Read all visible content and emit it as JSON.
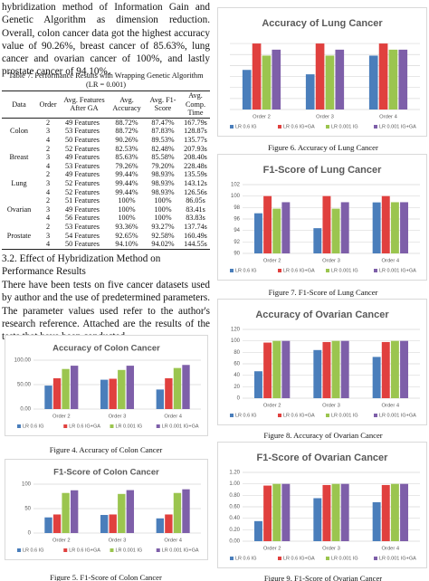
{
  "paragraph1": "hybridization method of Information Gain and Genetic Algorithm as dimension reduction. Overall, colon cancer data got the highest accuracy value of 90.26%, breast cancer of 85.63%, lung cancer and ovarian cancer of 100%, and lastly prostate cancer of 94.10%.",
  "table": {
    "caption": "Table 7. Performance Results with Wrapping Genetic Algorithm (LR = 0.001)",
    "headers": [
      "Data",
      "Order",
      "Avg. Features After GA",
      "Avg. Accuracy",
      "Avg. F1-Score",
      "Avg. Comp. Time"
    ],
    "groups": [
      {
        "data": "Colon",
        "rows": [
          [
            "2",
            "49 Features",
            "88.72%",
            "87.47%",
            "167.79s"
          ],
          [
            "3",
            "53 Features",
            "88.72%",
            "87.83%",
            "128.87s"
          ],
          [
            "4",
            "50 Features",
            "90.26%",
            "89.53%",
            "135.77s"
          ]
        ]
      },
      {
        "data": "Breast",
        "rows": [
          [
            "2",
            "52 Features",
            "82.53%",
            "82.48%",
            "207.93s"
          ],
          [
            "3",
            "49 Features",
            "85.63%",
            "85.58%",
            "208.40s"
          ],
          [
            "4",
            "53 Features",
            "79.26%",
            "79.20%",
            "228.48s"
          ]
        ]
      },
      {
        "data": "Lung",
        "rows": [
          [
            "2",
            "49 Features",
            "99.44%",
            "98.93%",
            "135.59s"
          ],
          [
            "3",
            "52 Features",
            "99.44%",
            "98.93%",
            "143.12s"
          ],
          [
            "4",
            "52 Features",
            "99.44%",
            "98.93%",
            "126.56s"
          ]
        ]
      },
      {
        "data": "Ovarian",
        "rows": [
          [
            "2",
            "51 Features",
            "100%",
            "100%",
            "86.05s"
          ],
          [
            "3",
            "49 Features",
            "100%",
            "100%",
            "83.41s"
          ],
          [
            "4",
            "56 Features",
            "100%",
            "100%",
            "83.83s"
          ]
        ]
      },
      {
        "data": "Prostate",
        "rows": [
          [
            "2",
            "53 Features",
            "93.36%",
            "93.27%",
            "137.74s"
          ],
          [
            "3",
            "54 Features",
            "92.65%",
            "92.58%",
            "160.49s"
          ],
          [
            "4",
            "50 Features",
            "94.10%",
            "94.02%",
            "144.55s"
          ]
        ]
      }
    ]
  },
  "section_heading": "3.2. Effect of Hybridization Method on Performance Results",
  "paragraph2": "There have been tests on five cancer datasets used by author and the use of predetermined parameters. The parameter values used refer to the author's research reference. Attached are the results of the tests that have been conducted.",
  "chart_data": [
    {
      "type": "bar",
      "title": "Accuracy of Colon Cancer",
      "caption": "Figure 4. Accuracy of Colon Cancer",
      "categories": [
        "Order 2",
        "Order 3",
        "Order 4"
      ],
      "series": [
        {
          "name": "LR 0.6 IG",
          "color": "#4a7ebb",
          "values": [
            48,
            60,
            40
          ]
        },
        {
          "name": "LR 0.6 IG+GA",
          "color": "#e0403e",
          "values": [
            63,
            62,
            63
          ]
        },
        {
          "name": "LR 0.001 IG",
          "color": "#9bc54f",
          "values": [
            82,
            80,
            84
          ]
        },
        {
          "name": "LR 0.001 IG+GA",
          "color": "#7e5fa9",
          "values": [
            88.72,
            88.72,
            90.26
          ]
        }
      ],
      "ylim": [
        0,
        100
      ],
      "yticks": [
        {
          "value": 0,
          "label": "0.00"
        },
        {
          "value": 50,
          "label": "50.00"
        },
        {
          "value": 100,
          "label": "100.00"
        }
      ],
      "grid": true
    },
    {
      "type": "bar",
      "title": "F1-Score of Colon Cancer",
      "caption": "Figure 5. F1-Score of Colon Cancer",
      "categories": [
        "Order 2",
        "Order 3",
        "Order 4"
      ],
      "series": [
        {
          "name": "LR 0.6 IG",
          "color": "#4a7ebb",
          "values": [
            32,
            37,
            30
          ]
        },
        {
          "name": "LR 0.6 IG+GA",
          "color": "#e0403e",
          "values": [
            38,
            38,
            38
          ]
        },
        {
          "name": "LR 0.001 IG",
          "color": "#9bc54f",
          "values": [
            82,
            80,
            82
          ]
        },
        {
          "name": "LR 0.001 IG+GA",
          "color": "#7e5fa9",
          "values": [
            87.47,
            87.83,
            89.53
          ]
        }
      ],
      "ylim": [
        0,
        100
      ],
      "yticks": [
        0,
        50,
        100
      ],
      "grid": true
    },
    {
      "type": "bar",
      "title": "Accuracy of Lung Cancer",
      "caption": "Figure 6. Accuracy of Lung Cancer",
      "categories": [
        "Order 2",
        "Order 3",
        "Order 4"
      ],
      "series": [
        {
          "name": "LR 0.6 IG",
          "color": "#4a7ebb",
          "values": [
            97.6,
            97.2,
            98.9
          ]
        },
        {
          "name": "LR 0.6 IG+GA",
          "color": "#e0403e",
          "values": [
            100,
            100,
            100
          ]
        },
        {
          "name": "LR 0.001 IG",
          "color": "#9bc54f",
          "values": [
            98.9,
            98.9,
            99.44
          ]
        },
        {
          "name": "LR 0.001 IG+GA",
          "color": "#7e5fa9",
          "values": [
            99.44,
            99.44,
            99.44
          ]
        }
      ],
      "ylim": [
        94,
        100.5
      ],
      "yticks": [
        94,
        95,
        96,
        97,
        98,
        99,
        100
      ],
      "tick_labels": false,
      "grid": true
    },
    {
      "type": "bar",
      "title": "F1-Score of Lung Cancer",
      "caption": "Figure 7. F1-Score of Lung Cancer",
      "categories": [
        "Order 2",
        "Order 3",
        "Order 4"
      ],
      "series": [
        {
          "name": "LR 0.6 IG",
          "color": "#4a7ebb",
          "values": [
            97,
            94.4,
            98.9
          ]
        },
        {
          "name": "LR 0.6 IG+GA",
          "color": "#e0403e",
          "values": [
            100,
            100,
            100
          ]
        },
        {
          "name": "LR 0.001 IG",
          "color": "#9bc54f",
          "values": [
            97.8,
            97.8,
            98.93
          ]
        },
        {
          "name": "LR 0.001 IG+GA",
          "color": "#7e5fa9",
          "values": [
            98.93,
            98.93,
            98.93
          ]
        }
      ],
      "ylim": [
        90,
        102
      ],
      "yticks": [
        90,
        92,
        94,
        96,
        98,
        100,
        102
      ],
      "grid": true
    },
    {
      "type": "bar",
      "title": "Accuracy of Ovarian Cancer",
      "caption": "Figure 8. Accuracy of Ovarian Cancer",
      "categories": [
        "Order 2",
        "Order 3",
        "Order 4"
      ],
      "series": [
        {
          "name": "LR 0.6 IG",
          "color": "#4a7ebb",
          "values": [
            47,
            84,
            72
          ]
        },
        {
          "name": "LR 0.6 IG+GA",
          "color": "#e0403e",
          "values": [
            97,
            98,
            98
          ]
        },
        {
          "name": "LR 0.001 IG",
          "color": "#9bc54f",
          "values": [
            100,
            100,
            100
          ]
        },
        {
          "name": "LR 0.001 IG+GA",
          "color": "#7e5fa9",
          "values": [
            100,
            100,
            100
          ]
        }
      ],
      "ylim": [
        0,
        120
      ],
      "yticks": [
        0,
        20,
        40,
        60,
        80,
        100,
        120
      ],
      "grid": true
    },
    {
      "type": "bar",
      "title": "F1-Score of Ovarian Cancer",
      "caption": "Figure 9. F1-Score of Ovarian Cancer",
      "categories": [
        "Order 2",
        "Order 3",
        "Order 4"
      ],
      "series": [
        {
          "name": "LR 0.6 IG",
          "color": "#4a7ebb",
          "values": [
            0.35,
            0.75,
            0.68
          ]
        },
        {
          "name": "LR 0.6 IG+GA",
          "color": "#e0403e",
          "values": [
            0.97,
            0.98,
            0.98
          ]
        },
        {
          "name": "LR 0.001 IG",
          "color": "#9bc54f",
          "values": [
            1.0,
            1.0,
            1.0
          ]
        },
        {
          "name": "LR 0.001 IG+GA",
          "color": "#7e5fa9",
          "values": [
            1.0,
            1.0,
            1.0
          ]
        }
      ],
      "ylim": [
        0,
        1.2
      ],
      "yticks": [
        {
          "value": 0,
          "label": "0.00"
        },
        {
          "value": 0.2,
          "label": "0.20"
        },
        {
          "value": 0.4,
          "label": "0.40"
        },
        {
          "value": 0.6,
          "label": "0.60"
        },
        {
          "value": 0.8,
          "label": "0.80"
        },
        {
          "value": 1.0,
          "label": "1.00"
        },
        {
          "value": 1.2,
          "label": "1.20"
        }
      ],
      "grid": true
    }
  ]
}
